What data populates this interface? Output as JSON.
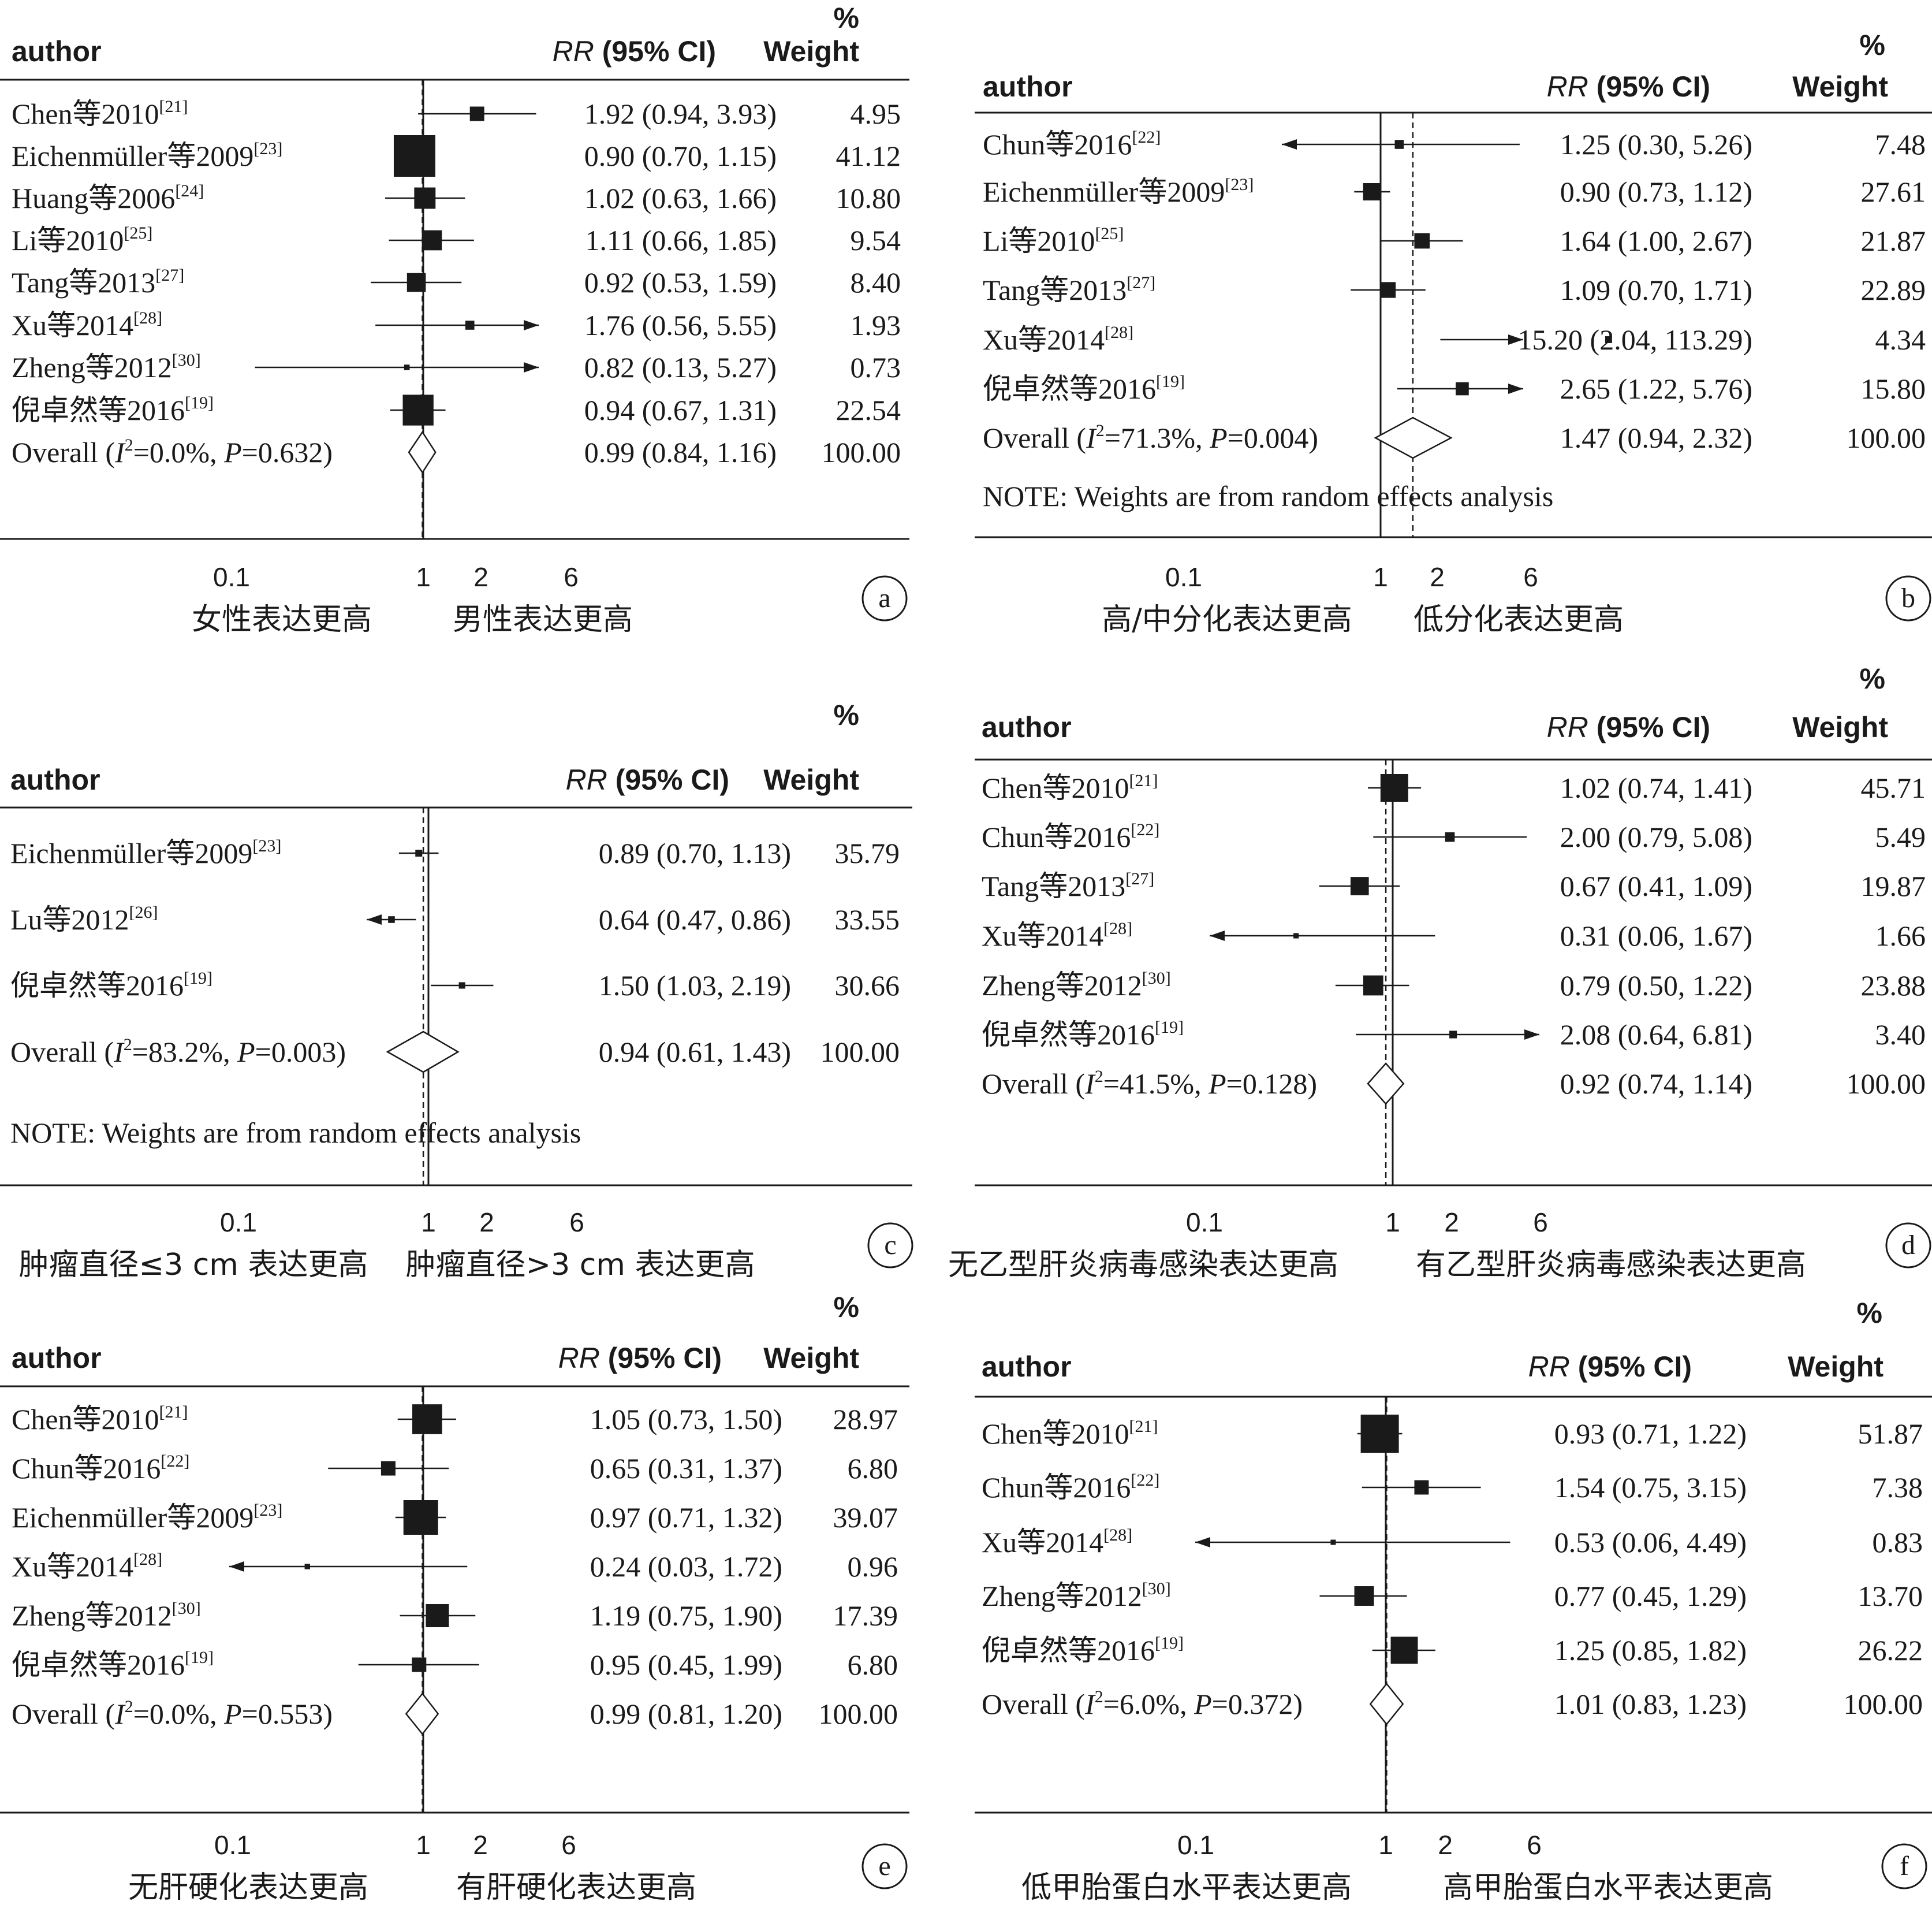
{
  "headers": {
    "percent": "%",
    "author": "author",
    "rr_italic": "RR",
    "rr_ci": "(95% CI)",
    "weight": "Weight"
  },
  "note": "NOTE: Weights are from random effects analysis",
  "chart_data": [
    {
      "type": "forest",
      "panel": "a",
      "x_scale": "log",
      "x_ticks": [
        "0.1",
        "1",
        "2",
        "6"
      ],
      "left_caption": "女性表达更高",
      "right_caption": "男性表达更高",
      "note": null,
      "studies": [
        {
          "name": "Chen等2010",
          "ref": "[21]",
          "rr": 1.92,
          "lo": 0.94,
          "hi": 3.93,
          "ci_text": "1.92 (0.94, 3.93)",
          "weight": "4.95"
        },
        {
          "name": "Eichenmüller等2009",
          "ref": "[23]",
          "rr": 0.9,
          "lo": 0.7,
          "hi": 1.15,
          "ci_text": "0.90 (0.70, 1.15)",
          "weight": "41.12"
        },
        {
          "name": "Huang等2006",
          "ref": "[24]",
          "rr": 1.02,
          "lo": 0.63,
          "hi": 1.66,
          "ci_text": "1.02 (0.63, 1.66)",
          "weight": "10.80"
        },
        {
          "name": "Li等2010",
          "ref": "[25]",
          "rr": 1.11,
          "lo": 0.66,
          "hi": 1.85,
          "ci_text": "1.11 (0.66, 1.85)",
          "weight": "9.54"
        },
        {
          "name": "Tang等2013",
          "ref": "[27]",
          "rr": 0.92,
          "lo": 0.53,
          "hi": 1.59,
          "ci_text": "0.92 (0.53, 1.59)",
          "weight": "8.40"
        },
        {
          "name": "Xu等2014",
          "ref": "[28]",
          "rr": 1.76,
          "lo": 0.56,
          "hi": 5.55,
          "ci_text": "1.76 (0.56, 5.55)",
          "weight": "1.93"
        },
        {
          "name": "Zheng等2012",
          "ref": "[30]",
          "rr": 0.82,
          "lo": 0.13,
          "hi": 5.27,
          "ci_text": "0.82 (0.13, 5.27)",
          "weight": "0.73"
        },
        {
          "name": "倪卓然等2016",
          "ref": "[19]",
          "rr": 0.94,
          "lo": 0.67,
          "hi": 1.31,
          "ci_text": "0.94 (0.67, 1.31)",
          "weight": "22.54"
        }
      ],
      "overall": {
        "label": "Overall",
        "i2": "0.0%",
        "p": "0.632",
        "rr": 0.99,
        "lo": 0.84,
        "hi": 1.16,
        "ci_text": "0.99 (0.84, 1.16)",
        "weight": "100.00"
      }
    },
    {
      "type": "forest",
      "panel": "b",
      "x_scale": "log",
      "x_ticks": [
        "0.1",
        "1",
        "2",
        "6"
      ],
      "left_caption": "高/中分化表达更高",
      "right_caption": "低分化表达更高",
      "note": "NOTE: Weights are from random effects analysis",
      "studies": [
        {
          "name": "Chun等2016",
          "ref": "[22]",
          "rr": 1.25,
          "lo": 0.3,
          "hi": 5.26,
          "ci_text": "1.25 (0.30, 5.26)",
          "weight": "7.48"
        },
        {
          "name": "Eichenmüller等2009",
          "ref": "[23]",
          "rr": 0.9,
          "lo": 0.73,
          "hi": 1.12,
          "ci_text": "0.90 (0.73, 1.12)",
          "weight": "27.61"
        },
        {
          "name": "Li等2010",
          "ref": "[25]",
          "rr": 1.64,
          "lo": 1.0,
          "hi": 2.67,
          "ci_text": "1.64 (1.00, 2.67)",
          "weight": "21.87"
        },
        {
          "name": "Tang等2013",
          "ref": "[27]",
          "rr": 1.09,
          "lo": 0.7,
          "hi": 1.71,
          "ci_text": "1.09 (0.70, 1.71)",
          "weight": "22.89"
        },
        {
          "name": "Xu等2014",
          "ref": "[28]",
          "rr": 15.2,
          "lo": 2.04,
          "hi": 113.29,
          "ci_text": "15.20 (2.04, 113.29)",
          "weight": "4.34"
        },
        {
          "name": "倪卓然等2016",
          "ref": "[19]",
          "rr": 2.65,
          "lo": 1.22,
          "hi": 5.76,
          "ci_text": "2.65 (1.22, 5.76)",
          "weight": "15.80"
        }
      ],
      "overall": {
        "label": "Overall",
        "i2": "71.3%",
        "p": "0.004",
        "rr": 1.47,
        "lo": 0.94,
        "hi": 2.32,
        "ci_text": "1.47 (0.94, 2.32)",
        "weight": "100.00"
      }
    },
    {
      "type": "forest",
      "panel": "c",
      "x_scale": "log",
      "x_ticks": [
        "0.1",
        "1",
        "2",
        "6"
      ],
      "left_caption": "肿瘤直径≤3 cm 表达更高",
      "right_caption": "肿瘤直径>3 cm 表达更高",
      "note": "NOTE: Weights are from random effects analysis",
      "studies": [
        {
          "name": "Eichenmüller等2009",
          "ref": "[23]",
          "rr": 0.89,
          "lo": 0.7,
          "hi": 1.13,
          "ci_text": "0.89 (0.70, 1.13)",
          "weight": "35.79"
        },
        {
          "name": "Lu等2012",
          "ref": "[26]",
          "rr": 0.64,
          "lo": 0.47,
          "hi": 0.86,
          "ci_text": "0.64 (0.47, 0.86)",
          "weight": "33.55"
        },
        {
          "name": "倪卓然等2016",
          "ref": "[19]",
          "rr": 1.5,
          "lo": 1.03,
          "hi": 2.19,
          "ci_text": "1.50 (1.03, 2.19)",
          "weight": "30.66"
        }
      ],
      "overall": {
        "label": "Overall",
        "i2": "83.2%",
        "p": "0.003",
        "rr": 0.94,
        "lo": 0.61,
        "hi": 1.43,
        "ci_text": "0.94 (0.61, 1.43)",
        "weight": "100.00"
      }
    },
    {
      "type": "forest",
      "panel": "d",
      "x_scale": "log",
      "x_ticks": [
        "0.1",
        "1",
        "2",
        "6"
      ],
      "left_caption": "无乙型肝炎病毒感染表达更高",
      "right_caption": "有乙型肝炎病毒感染表达更高",
      "note": null,
      "studies": [
        {
          "name": "Chen等2010",
          "ref": "[21]",
          "rr": 1.02,
          "lo": 0.74,
          "hi": 1.41,
          "ci_text": "1.02 (0.74, 1.41)",
          "weight": "45.71"
        },
        {
          "name": "Chun等2016",
          "ref": "[22]",
          "rr": 2.0,
          "lo": 0.79,
          "hi": 5.08,
          "ci_text": "2.00 (0.79, 5.08)",
          "weight": "5.49"
        },
        {
          "name": "Tang等2013",
          "ref": "[27]",
          "rr": 0.67,
          "lo": 0.41,
          "hi": 1.09,
          "ci_text": "0.67 (0.41, 1.09)",
          "weight": "19.87"
        },
        {
          "name": "Xu等2014",
          "ref": "[28]",
          "rr": 0.31,
          "lo": 0.06,
          "hi": 1.67,
          "ci_text": "0.31 (0.06, 1.67)",
          "weight": "1.66"
        },
        {
          "name": "Zheng等2012",
          "ref": "[30]",
          "rr": 0.79,
          "lo": 0.5,
          "hi": 1.22,
          "ci_text": "0.79 (0.50, 1.22)",
          "weight": "23.88"
        },
        {
          "name": "倪卓然等2016",
          "ref": "[19]",
          "rr": 2.08,
          "lo": 0.64,
          "hi": 6.81,
          "ci_text": "2.08 (0.64, 6.81)",
          "weight": "3.40"
        }
      ],
      "overall": {
        "label": "Overall",
        "i2": "41.5%",
        "p": "0.128",
        "rr": 0.92,
        "lo": 0.74,
        "hi": 1.14,
        "ci_text": "0.92 (0.74, 1.14)",
        "weight": "100.00"
      }
    },
    {
      "type": "forest",
      "panel": "e",
      "x_scale": "log",
      "x_ticks": [
        "0.1",
        "1",
        "2",
        "6"
      ],
      "left_caption": "无肝硬化表达更高",
      "right_caption": "有肝硬化表达更高",
      "note": null,
      "studies": [
        {
          "name": "Chen等2010",
          "ref": "[21]",
          "rr": 1.05,
          "lo": 0.73,
          "hi": 1.5,
          "ci_text": "1.05 (0.73, 1.50)",
          "weight": "28.97"
        },
        {
          "name": "Chun等2016",
          "ref": "[22]",
          "rr": 0.65,
          "lo": 0.31,
          "hi": 1.37,
          "ci_text": "0.65 (0.31, 1.37)",
          "weight": "6.80"
        },
        {
          "name": "Eichenmüller等2009",
          "ref": "[23]",
          "rr": 0.97,
          "lo": 0.71,
          "hi": 1.32,
          "ci_text": "0.97 (0.71, 1.32)",
          "weight": "39.07"
        },
        {
          "name": "Xu等2014",
          "ref": "[28]",
          "rr": 0.24,
          "lo": 0.03,
          "hi": 1.72,
          "ci_text": "0.24 (0.03, 1.72)",
          "weight": "0.96"
        },
        {
          "name": "Zheng等2012",
          "ref": "[30]",
          "rr": 1.19,
          "lo": 0.75,
          "hi": 1.9,
          "ci_text": "1.19 (0.75, 1.90)",
          "weight": "17.39"
        },
        {
          "name": "倪卓然等2016",
          "ref": "[19]",
          "rr": 0.95,
          "lo": 0.45,
          "hi": 1.99,
          "ci_text": "0.95 (0.45, 1.99)",
          "weight": "6.80"
        }
      ],
      "overall": {
        "label": "Overall",
        "i2": "0.0%",
        "p": "0.553",
        "rr": 0.99,
        "lo": 0.81,
        "hi": 1.2,
        "ci_text": "0.99 (0.81, 1.20)",
        "weight": "100.00"
      }
    },
    {
      "type": "forest",
      "panel": "f",
      "x_scale": "log",
      "x_ticks": [
        "0.1",
        "1",
        "2",
        "6"
      ],
      "left_caption": "低甲胎蛋白水平表达更高",
      "right_caption": "高甲胎蛋白水平表达更高",
      "note": null,
      "studies": [
        {
          "name": "Chen等2010",
          "ref": "[21]",
          "rr": 0.93,
          "lo": 0.71,
          "hi": 1.22,
          "ci_text": "0.93 (0.71, 1.22)",
          "weight": "51.87"
        },
        {
          "name": "Chun等2016",
          "ref": "[22]",
          "rr": 1.54,
          "lo": 0.75,
          "hi": 3.15,
          "ci_text": "1.54 (0.75, 3.15)",
          "weight": "7.38"
        },
        {
          "name": "Xu等2014",
          "ref": "[28]",
          "rr": 0.53,
          "lo": 0.06,
          "hi": 4.49,
          "ci_text": "0.53 (0.06, 4.49)",
          "weight": "0.83"
        },
        {
          "name": "Zheng等2012",
          "ref": "[30]",
          "rr": 0.77,
          "lo": 0.45,
          "hi": 1.29,
          "ci_text": "0.77 (0.45, 1.29)",
          "weight": "13.70"
        },
        {
          "name": "倪卓然等2016",
          "ref": "[19]",
          "rr": 1.25,
          "lo": 0.85,
          "hi": 1.82,
          "ci_text": "1.25 (0.85, 1.82)",
          "weight": "26.22"
        }
      ],
      "overall": {
        "label": "Overall",
        "i2": "6.0%",
        "p": "0.372",
        "rr": 1.01,
        "lo": 0.83,
        "hi": 1.23,
        "ci_text": "1.01 (0.83, 1.23)",
        "weight": "100.00"
      }
    }
  ]
}
